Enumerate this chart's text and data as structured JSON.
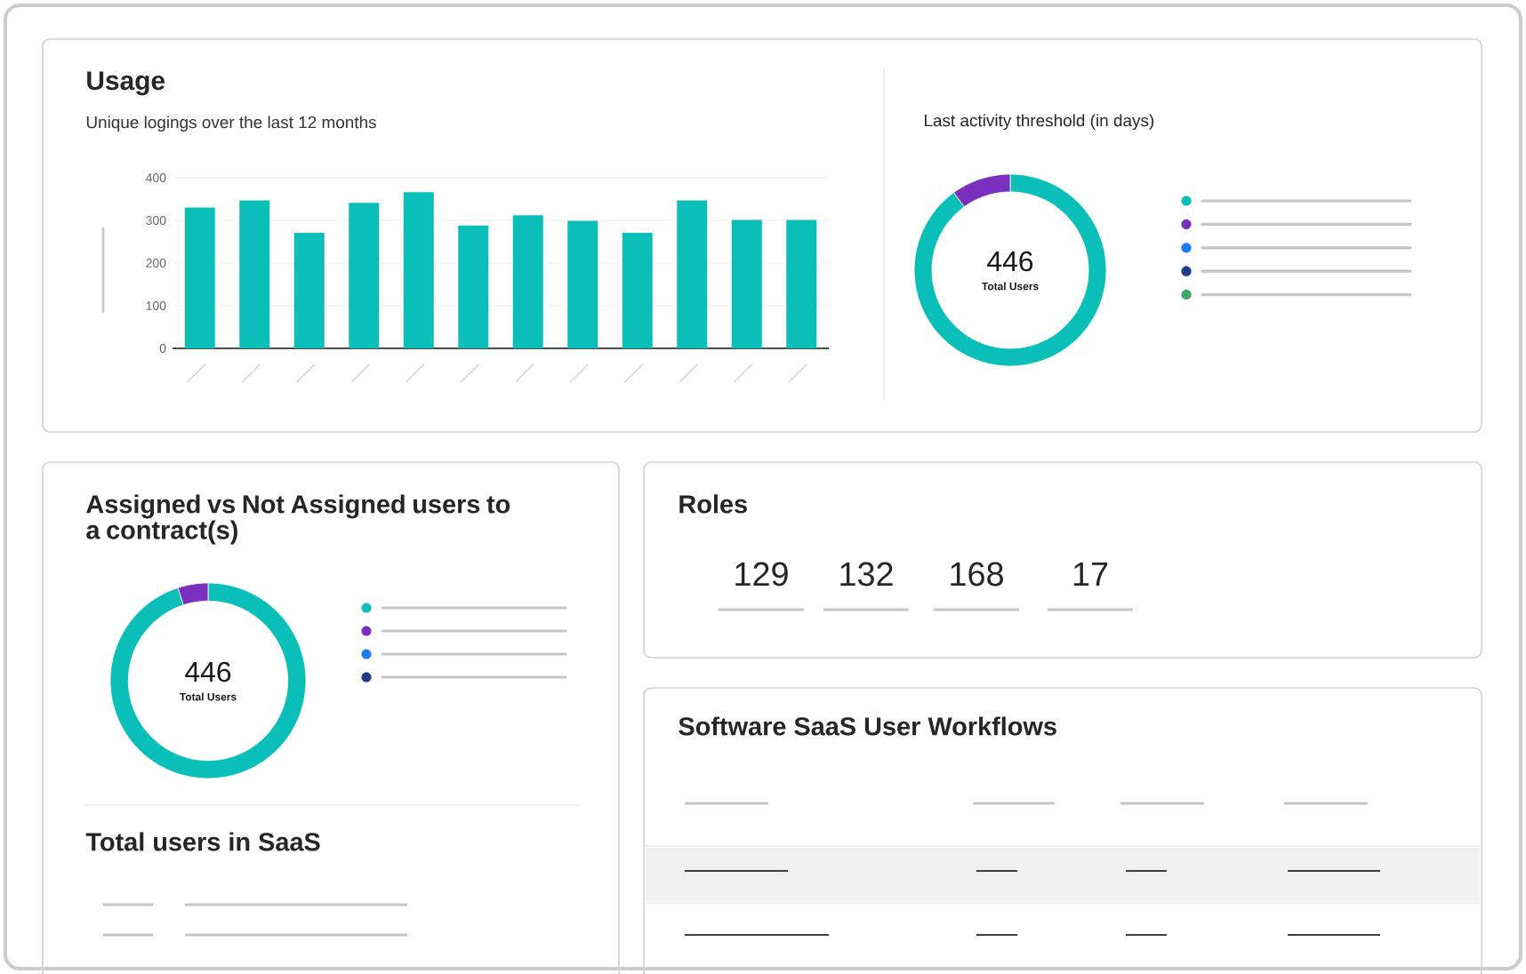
{
  "chart_data": [
    {
      "type": "bar",
      "title": "Usage",
      "subtitle": "Unique logings over the last 12 months",
      "categories": [
        null,
        null,
        null,
        null,
        null,
        null,
        null,
        null,
        null,
        null,
        null,
        null
      ],
      "values": [
        330,
        347,
        271,
        341,
        366,
        288,
        312,
        299,
        271,
        347,
        301,
        301
      ],
      "color": "#0abfb8",
      "ylim": [
        0,
        400
      ],
      "yticks": [
        0,
        100,
        200,
        300,
        400
      ],
      "grid": "y"
    },
    {
      "type": "donut",
      "title": "Last activity threshold (in days)",
      "categories": [
        null,
        null,
        null,
        null,
        null
      ],
      "values": [
        90,
        10,
        0,
        0,
        0
      ],
      "colors": [
        "#0abfb8",
        "#7b2fbe",
        "#1a7cf5",
        "#1f3a8a",
        "#3aa66a"
      ],
      "annotations": [
        "446",
        "Total Users"
      ]
    },
    {
      "type": "donut",
      "title": "Assigned vs Not Assigned users to a contract(s)",
      "categories": [
        null,
        null,
        null,
        null
      ],
      "values": [
        95,
        5,
        0,
        0
      ],
      "colors": [
        "#0abfb8",
        "#7b2fbe",
        "#1a7cf5",
        "#1f3a8a"
      ],
      "annotations": [
        "446",
        "Total Users"
      ]
    },
    {
      "type": "other",
      "title": "Roles",
      "categories": [
        null,
        null,
        null,
        null
      ],
      "values": [
        129,
        132,
        168,
        17
      ],
      "data_labels": true
    },
    {
      "type": "other",
      "title": "Total users in SaaS"
    },
    {
      "type": "other",
      "title": "Software SaaS User Workflows"
    }
  ]
}
